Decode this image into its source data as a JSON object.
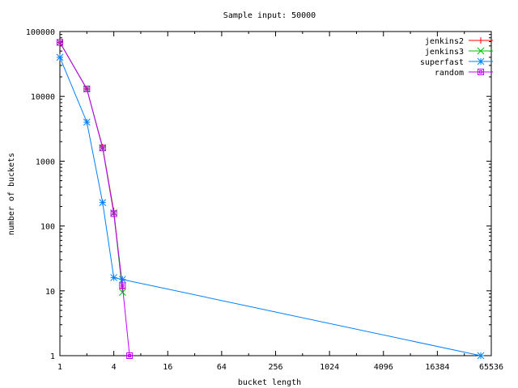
{
  "chart_data": {
    "type": "line",
    "title": "Sample input: 50000",
    "xlabel": "bucket length",
    "ylabel": "number of buckets",
    "x_scale": "log2",
    "y_scale": "log10",
    "xlim": [
      1,
      65536
    ],
    "ylim": [
      1,
      100000
    ],
    "x_ticks": [
      1,
      4,
      16,
      64,
      256,
      1024,
      4096,
      16384,
      65536
    ],
    "x_tick_labels": [
      "1",
      "4",
      "16",
      "64",
      "256",
      "1024",
      "4096",
      "16384",
      "65536"
    ],
    "y_ticks": [
      1,
      10,
      100,
      1000,
      10000,
      100000
    ],
    "y_tick_labels": [
      "1",
      "10",
      "100",
      "1000",
      "10000",
      "100000"
    ],
    "grid": false,
    "legend_position": "top-right",
    "series": [
      {
        "name": "jenkins2",
        "color": "#ff0000",
        "marker": "plus",
        "points": [
          [
            1,
            68000
          ],
          [
            2,
            13000
          ],
          [
            3,
            1650
          ],
          [
            4,
            170
          ],
          [
            5,
            11
          ]
        ]
      },
      {
        "name": "jenkins3",
        "color": "#00c000",
        "marker": "cross",
        "points": [
          [
            1,
            68000
          ],
          [
            2,
            13000
          ],
          [
            3,
            1620
          ],
          [
            4,
            160
          ],
          [
            5,
            9.5
          ]
        ]
      },
      {
        "name": "superfast",
        "color": "#0080ff",
        "marker": "star",
        "points": [
          [
            1,
            40000
          ],
          [
            2,
            4000
          ],
          [
            3,
            230
          ],
          [
            4,
            16
          ],
          [
            5,
            15
          ],
          [
            50000,
            1
          ]
        ]
      },
      {
        "name": "random",
        "color": "#c000ff",
        "marker": "square",
        "points": [
          [
            1,
            68000
          ],
          [
            2,
            13000
          ],
          [
            3,
            1600
          ],
          [
            4,
            155
          ],
          [
            5,
            12
          ],
          [
            6,
            1
          ]
        ]
      }
    ]
  }
}
